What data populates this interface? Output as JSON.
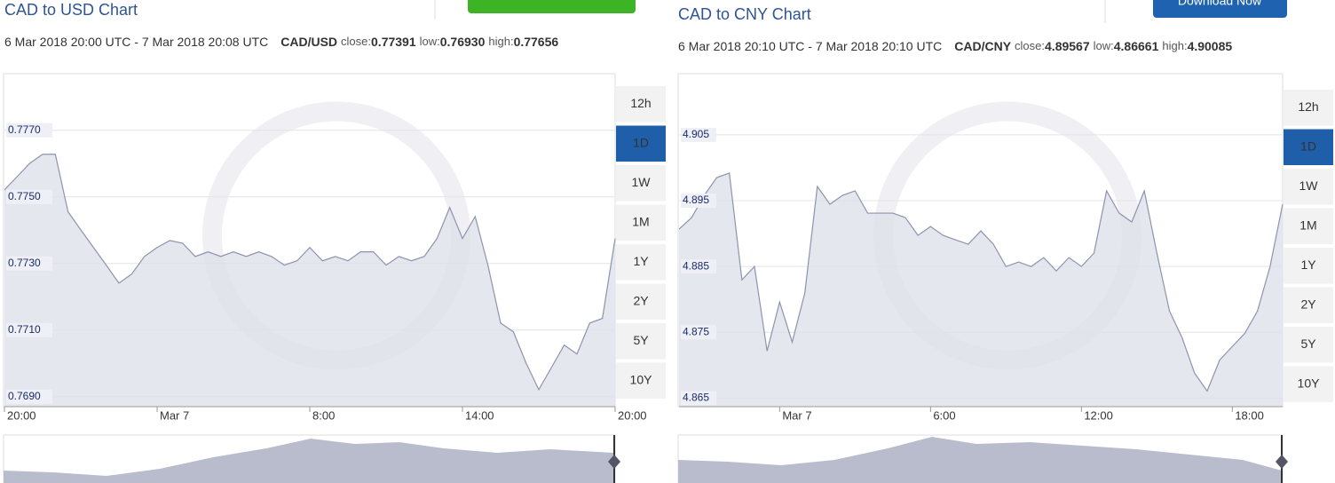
{
  "chart_data": [
    {
      "type": "line",
      "title": "CAD to USD Chart",
      "date_range": "6 Mar 2018 20:00 UTC - 7 Mar 2018 20:08 UTC",
      "pair": "CAD/USD",
      "stats": [
        {
          "label": "close:",
          "value": "0.77391"
        },
        {
          "label": "low:",
          "value": "0.76930"
        },
        {
          "label": "high:",
          "value": "0.77656"
        }
      ],
      "categories": [
        "20:00",
        null,
        null,
        null,
        null,
        null,
        null,
        null,
        null,
        null,
        null,
        null,
        "Mar 7",
        null,
        null,
        null,
        null,
        null,
        null,
        null,
        null,
        null,
        null,
        null,
        "8:00",
        null,
        null,
        null,
        null,
        null,
        null,
        null,
        null,
        null,
        null,
        null,
        "14:00",
        null,
        null,
        null,
        null,
        null,
        null,
        null,
        null,
        null,
        null,
        null,
        "20:00"
      ],
      "series": [
        {
          "color": "#8d93ad",
          "values": [
            0.77521,
            0.77561,
            0.77601,
            0.77628,
            0.77628,
            0.77455,
            0.77401,
            0.77348,
            0.77295,
            0.77241,
            0.77268,
            0.77321,
            0.77348,
            0.77369,
            0.77361,
            0.77321,
            0.77335,
            0.77321,
            0.77335,
            0.77321,
            0.77335,
            0.77321,
            0.77295,
            0.77308,
            0.77348,
            0.77308,
            0.77321,
            0.77308,
            0.77335,
            0.77335,
            0.77295,
            0.77321,
            0.77308,
            0.77321,
            0.77375,
            0.77468,
            0.77375,
            0.77441,
            0.77295,
            0.77121,
            0.77095,
            0.77001,
            0.76921,
            0.76988,
            0.77055,
            0.77028,
            0.77121,
            0.77135,
            0.77375
          ]
        }
      ],
      "ylim": [
        0.7687,
        0.7787
      ],
      "yticks": [
        {
          "value": 0.777,
          "label": "0.7770"
        },
        {
          "value": 0.775,
          "label": "0.7750"
        },
        {
          "value": 0.773,
          "label": "0.7730"
        },
        {
          "value": 0.771,
          "label": "0.7710"
        },
        {
          "value": 0.769,
          "label": "0.7690"
        }
      ],
      "grid": true,
      "range_buttons": [
        "12h",
        "1D",
        "1W",
        "1M",
        "1Y",
        "2Y",
        "5Y",
        "10Y"
      ],
      "active_range": 1
    },
    {
      "type": "line",
      "title": "CAD to CNY Chart",
      "date_range": "6 Mar 2018 20:10 UTC - 7 Mar 2018 20:10 UTC",
      "pair": "CAD/CNY",
      "stats": [
        {
          "label": "close:",
          "value": "4.89567"
        },
        {
          "label": "low:",
          "value": "4.86661"
        },
        {
          "label": "high:",
          "value": "4.90085"
        }
      ],
      "button": "Download Now",
      "categories": [
        null,
        null,
        null,
        null,
        null,
        null,
        null,
        null,
        "Mar 7",
        null,
        null,
        null,
        null,
        null,
        null,
        null,
        null,
        null,
        null,
        null,
        "6:00",
        null,
        null,
        null,
        null,
        null,
        null,
        null,
        null,
        null,
        null,
        null,
        "12:00",
        null,
        null,
        null,
        null,
        null,
        null,
        null,
        null,
        null,
        null,
        null,
        "18:00",
        null,
        null,
        null,
        null
      ],
      "series": [
        {
          "color": "#8d93ad",
          "values": [
            4.89068,
            4.89243,
            4.89581,
            4.89851,
            4.89919,
            4.88297,
            4.885,
            4.87216,
            4.87959,
            4.87351,
            4.88095,
            4.89716,
            4.89446,
            4.89581,
            4.89649,
            4.89311,
            4.89311,
            4.89311,
            4.89243,
            4.88973,
            4.89108,
            4.88973,
            4.88905,
            4.88838,
            4.89041,
            4.88838,
            4.885,
            4.88568,
            4.885,
            4.88635,
            4.88432,
            4.88635,
            4.885,
            4.88703,
            4.89649,
            4.89311,
            4.89176,
            4.89649,
            4.88703,
            4.87824,
            4.87419,
            4.86878,
            4.86608,
            4.87081,
            4.87284,
            4.87486,
            4.87824,
            4.885,
            4.89446
          ]
        }
      ],
      "ylim": [
        4.8637,
        4.9143
      ],
      "yticks": [
        4.905,
        4.895,
        4.885,
        4.875,
        4.865
      ],
      "grid": true,
      "range_buttons": [
        "12h",
        "1D",
        "1W",
        "1M",
        "1Y",
        "2Y",
        "5Y",
        "10Y"
      ],
      "active_range": 1
    }
  ]
}
